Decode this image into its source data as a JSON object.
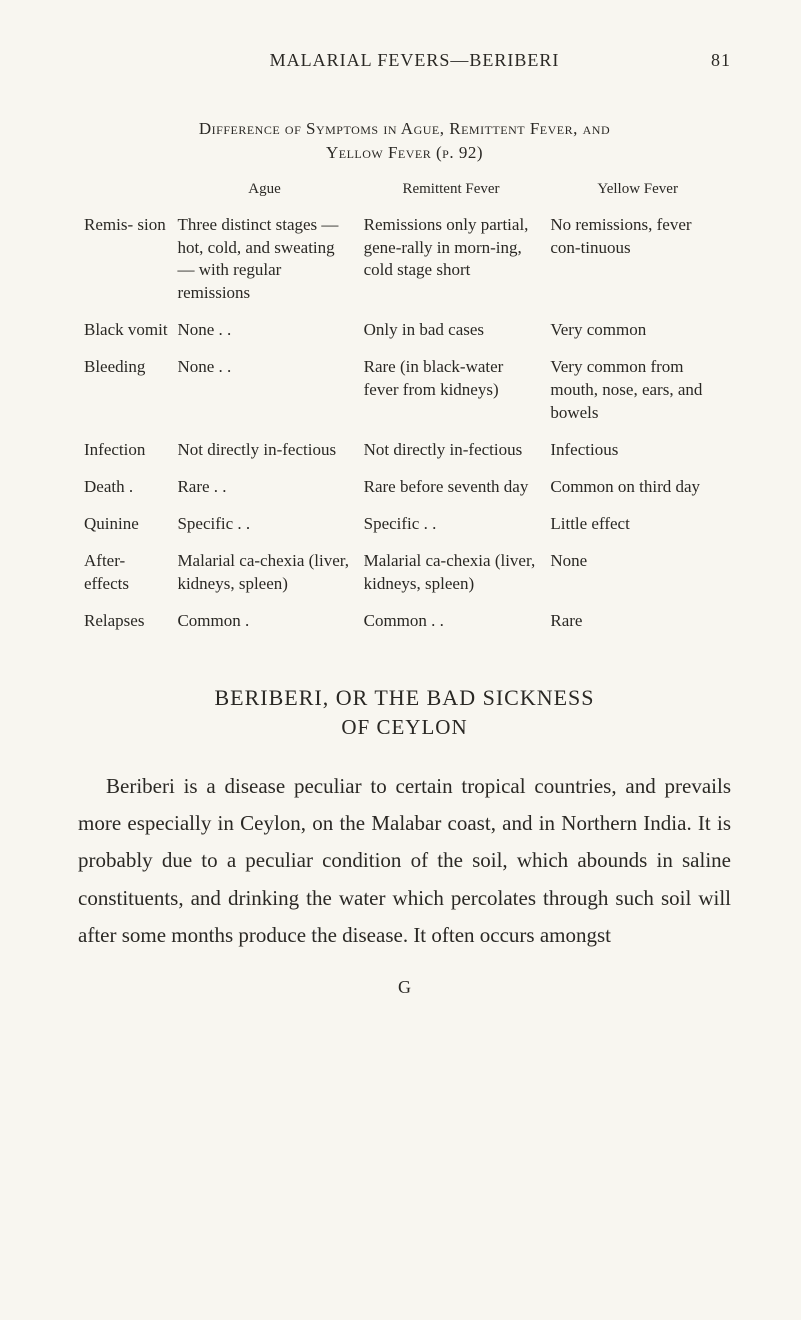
{
  "header": {
    "running_title": "MALARIAL FEVERS—BERIBERI",
    "page_number": "81"
  },
  "table": {
    "caption_line1": "Difference of Symptoms in Ague, Remittent Fever, and",
    "caption_line2": "Yellow Fever (p. 92)",
    "columns": [
      "",
      "Ague",
      "Remittent Fever",
      "Yellow Fever"
    ],
    "rows": [
      {
        "label": "Remis-\nsion",
        "ague": "Three distinct stages — hot, cold, and sweating — with regular remissions",
        "remittent": "Remissions only partial, gene-rally in morn-ing, cold stage short",
        "yellow": "No remissions, fever con-tinuous"
      },
      {
        "label": "Black vomit",
        "ague": "None . .",
        "remittent": "Only in bad cases",
        "yellow": "Very common"
      },
      {
        "label": "Bleeding",
        "ague": "None . .",
        "remittent": "Rare (in black-water fever from kidneys)",
        "yellow": "Very common from mouth, nose, ears, and bowels"
      },
      {
        "label": "Infection",
        "ague": "Not directly in-fectious",
        "remittent": "Not directly in-fectious",
        "yellow": "Infectious"
      },
      {
        "label": "Death .",
        "ague": "Rare . .",
        "remittent": "Rare before seventh day",
        "yellow": "Common on third day"
      },
      {
        "label": "Quinine",
        "ague": "Specific . .",
        "remittent": "Specific . .",
        "yellow": "Little effect"
      },
      {
        "label": "After-effects",
        "ague": "Malarial ca-chexia (liver, kidneys, spleen)",
        "remittent": "Malarial ca-chexia (liver, kidneys, spleen)",
        "yellow": "None"
      },
      {
        "label": "Relapses",
        "ague": "Common .",
        "remittent": "Common . .",
        "yellow": "Rare"
      }
    ]
  },
  "section": {
    "title_line1": "BERIBERI, OR THE BAD SICKNESS",
    "title_line2": "OF CEYLON",
    "paragraph": "Beriberi is a disease peculiar to certain tropical countries, and prevails more especially in Ceylon, on the Malabar coast, and in Northern India. It is probably due to a peculiar condition of the soil, which abounds in saline constituents, and drinking the water which percolates through such soil will after some months produce the disease. It often occurs amongst"
  },
  "signature_mark": "G"
}
